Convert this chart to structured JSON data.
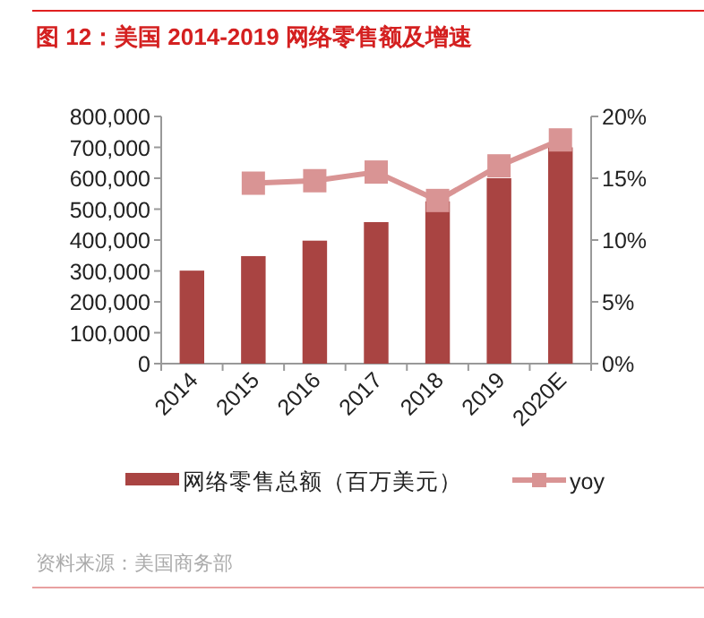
{
  "chart_data": {
    "type": "bar",
    "title": "图 12：美国 2014-2019 网络零售额及增速",
    "categories": [
      "2014",
      "2015",
      "2016",
      "2017",
      "2018",
      "2019",
      "2020E"
    ],
    "series": [
      {
        "name": "网络零售总额（百万美元）",
        "color": "#a94442",
        "values": [
          301000,
          348000,
          398000,
          458000,
          525000,
          600000,
          700000
        ]
      },
      {
        "name": "yoy",
        "type": "line",
        "axis": "y2",
        "color": "#d99494",
        "marker": "square",
        "values": [
          null,
          14.6,
          14.8,
          15.5,
          13.2,
          16.0,
          18.1
        ]
      }
    ],
    "ylim": [
      0,
      800000
    ],
    "yticks": [
      {
        "value": 0,
        "label": "0"
      },
      {
        "value": 100000,
        "label": "100,000"
      },
      {
        "value": 200000,
        "label": "200,000"
      },
      {
        "value": 300000,
        "label": "300,000"
      },
      {
        "value": 400000,
        "label": "400,000"
      },
      {
        "value": 500000,
        "label": "500,000"
      },
      {
        "value": 600000,
        "label": "600,000"
      },
      {
        "value": 700000,
        "label": "700,000"
      },
      {
        "value": 800000,
        "label": "800,000"
      }
    ],
    "y2lim": [
      0,
      20
    ],
    "y2ticks": [
      {
        "value": 0,
        "label": "0%"
      },
      {
        "value": 5,
        "label": "5%"
      },
      {
        "value": 10,
        "label": "10%"
      },
      {
        "value": 15,
        "label": "15%"
      },
      {
        "value": 20,
        "label": "20%"
      }
    ],
    "grid": false,
    "legend": "bottom",
    "annotations": [
      "资料来源：美国商务部"
    ]
  }
}
